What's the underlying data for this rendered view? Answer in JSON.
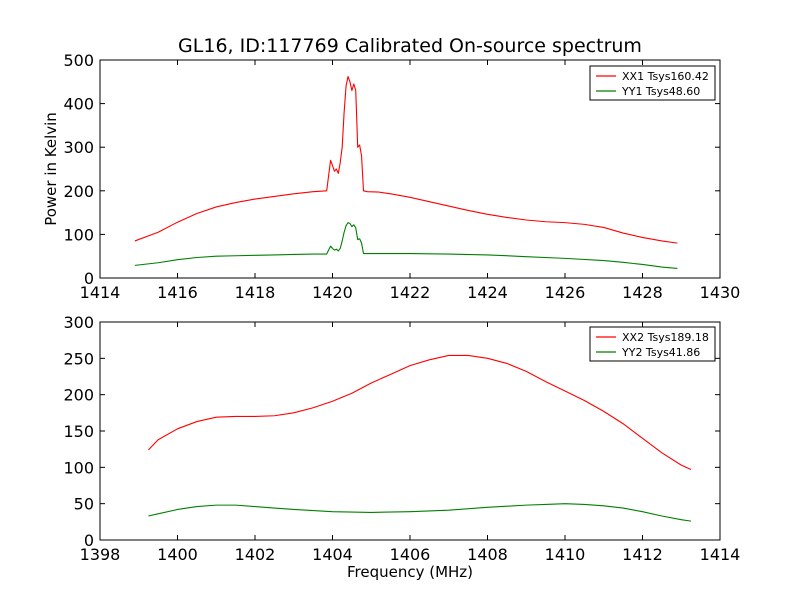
{
  "chart_data": [
    {
      "type": "line",
      "title": "GL16, ID:117769 Calibrated On-source spectrum",
      "xlabel": "",
      "ylabel": "Power in Kelvin",
      "xlim": [
        1414,
        1430
      ],
      "ylim": [
        0,
        500
      ],
      "xticks": [
        "1414",
        "1416",
        "1418",
        "1420",
        "1422",
        "1424",
        "1426",
        "1428",
        "1430"
      ],
      "yticks": [
        "0",
        "100",
        "200",
        "300",
        "400",
        "500"
      ],
      "grid": false,
      "legend": "top-right",
      "series": [
        {
          "name": "XX1 Tsys160.42",
          "color": "#ff0000",
          "x": [
            1414.9,
            1415.5,
            1416.0,
            1416.5,
            1417.0,
            1417.5,
            1418.0,
            1418.5,
            1419.0,
            1419.5,
            1419.85,
            1419.95,
            1420.0,
            1420.05,
            1420.1,
            1420.15,
            1420.2,
            1420.25,
            1420.3,
            1420.35,
            1420.4,
            1420.45,
            1420.5,
            1420.55,
            1420.6,
            1420.65,
            1420.7,
            1420.75,
            1420.8,
            1420.9,
            1421.2,
            1421.5,
            1422.0,
            1422.5,
            1423.0,
            1423.5,
            1424.0,
            1424.5,
            1425.0,
            1425.5,
            1426.0,
            1426.5,
            1427.0,
            1427.5,
            1428.0,
            1428.5,
            1428.9
          ],
          "y": [
            85,
            105,
            128,
            148,
            163,
            173,
            181,
            187,
            193,
            198,
            200,
            270,
            258,
            245,
            250,
            240,
            265,
            300,
            380,
            440,
            462,
            450,
            430,
            445,
            430,
            300,
            305,
            280,
            200,
            198,
            197,
            193,
            185,
            175,
            165,
            155,
            146,
            139,
            133,
            129,
            127,
            123,
            116,
            103,
            93,
            85,
            80
          ]
        },
        {
          "name": "YY1 Tsys48.60",
          "color": "#008000",
          "x": [
            1414.9,
            1415.5,
            1416.0,
            1416.5,
            1417.0,
            1417.5,
            1418.0,
            1418.5,
            1419.0,
            1419.5,
            1419.85,
            1419.95,
            1420.0,
            1420.05,
            1420.1,
            1420.15,
            1420.2,
            1420.25,
            1420.3,
            1420.35,
            1420.4,
            1420.45,
            1420.5,
            1420.55,
            1420.6,
            1420.65,
            1420.7,
            1420.75,
            1420.8,
            1420.9,
            1421.5,
            1422.0,
            1423.0,
            1424.0,
            1425.0,
            1426.0,
            1427.0,
            1427.5,
            1428.0,
            1428.5,
            1428.9
          ],
          "y": [
            29,
            35,
            42,
            47,
            50,
            51,
            52,
            53,
            54,
            55,
            55,
            73,
            68,
            64,
            66,
            62,
            68,
            85,
            105,
            120,
            127,
            125,
            118,
            122,
            115,
            88,
            90,
            80,
            56,
            56,
            56,
            56,
            55,
            53,
            49,
            45,
            40,
            36,
            31,
            25,
            22
          ]
        }
      ]
    },
    {
      "type": "line",
      "title": "",
      "xlabel": "Frequency (MHz)",
      "ylabel": "",
      "xlim": [
        1398,
        1414
      ],
      "ylim": [
        0,
        300
      ],
      "xticks": [
        "1398",
        "1400",
        "1402",
        "1404",
        "1406",
        "1408",
        "1410",
        "1412",
        "1414"
      ],
      "yticks": [
        "0",
        "50",
        "100",
        "150",
        "200",
        "250",
        "300"
      ],
      "grid": false,
      "legend": "top-right",
      "series": [
        {
          "name": "XX2 Tsys189.18",
          "color": "#ff0000",
          "x": [
            1399.25,
            1399.5,
            1400.0,
            1400.5,
            1401.0,
            1401.5,
            1402.0,
            1402.5,
            1403.0,
            1403.5,
            1404.0,
            1404.5,
            1405.0,
            1405.5,
            1406.0,
            1406.5,
            1407.0,
            1407.5,
            1408.0,
            1408.5,
            1409.0,
            1409.5,
            1410.0,
            1410.5,
            1411.0,
            1411.5,
            1412.0,
            1412.5,
            1413.0,
            1413.25
          ],
          "y": [
            124,
            138,
            153,
            163,
            169,
            170,
            170,
            171,
            175,
            182,
            191,
            202,
            216,
            228,
            240,
            248,
            254,
            254,
            250,
            243,
            232,
            218,
            205,
            192,
            177,
            160,
            140,
            120,
            103,
            97
          ]
        },
        {
          "name": "YY2 Tsys41.86",
          "color": "#008000",
          "x": [
            1399.25,
            1399.5,
            1400.0,
            1400.5,
            1401.0,
            1401.5,
            1402.0,
            1402.5,
            1403.0,
            1404.0,
            1405.0,
            1406.0,
            1407.0,
            1408.0,
            1409.0,
            1409.5,
            1410.0,
            1410.5,
            1411.0,
            1411.5,
            1412.0,
            1412.5,
            1413.0,
            1413.25
          ],
          "y": [
            33,
            36,
            42,
            46,
            48,
            48,
            46,
            44,
            42,
            39,
            38,
            39,
            41,
            45,
            48,
            49,
            50,
            49,
            47,
            44,
            39,
            33,
            28,
            26
          ]
        }
      ]
    }
  ]
}
